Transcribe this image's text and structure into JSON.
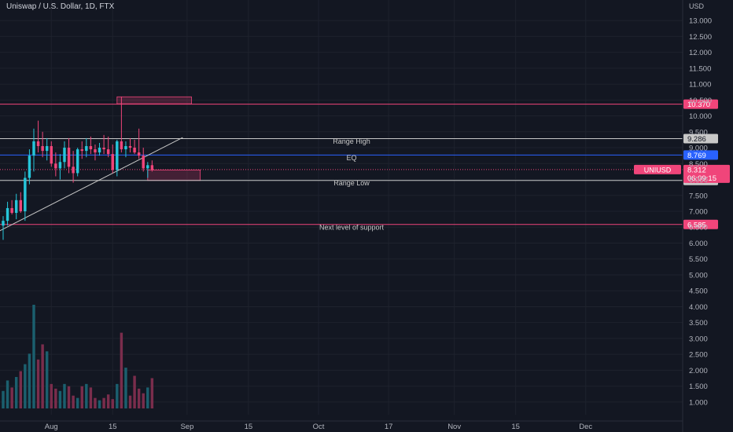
{
  "symbol_title": "Uniswap / U.S. Dollar, 1D, FTX",
  "colors": {
    "background": "#131722",
    "grid": "#1e222d",
    "axis_text": "#b2b5be",
    "up": "#26c6da",
    "down": "#f0457a",
    "vol_up": "#1b5f6e",
    "vol_down": "#7a2d4c",
    "level_pink": "#f0457a",
    "level_white": "#c8c8c8",
    "level_blue": "#2962ff",
    "zone_fill": "rgba(240,69,122,0.22)",
    "zone_stroke": "#f0457a",
    "trendline": "#c8c8c8"
  },
  "chart_data": {
    "type": "candlestick",
    "title": "Uniswap / U.S. Dollar, 1D, FTX",
    "currency_label": "USD",
    "ylim": [
      0.75,
      13.25
    ],
    "price_ticks": [
      1.0,
      1.5,
      2.0,
      2.5,
      3.0,
      3.5,
      4.0,
      4.5,
      5.0,
      5.5,
      6.0,
      6.5,
      7.0,
      7.5,
      8.0,
      8.5,
      9.0,
      9.5,
      10.0,
      10.5,
      11.0,
      11.5,
      12.0,
      12.5,
      13.0
    ],
    "price_tick_labels": [
      "1.000",
      "1.500",
      "2.000",
      "2.500",
      "3.000",
      "3.500",
      "4.000",
      "4.500",
      "5.000",
      "5.500",
      "6.000",
      "6.500",
      "7.000",
      "7.500",
      "8.000",
      "8.500",
      "9.000",
      "9.500",
      "10.000",
      "10.500",
      "11.000",
      "11.500",
      "12.000",
      "12.500",
      "13.000"
    ],
    "x_ticks": [
      {
        "date": "2021-08-01",
        "label": "Aug"
      },
      {
        "date": "2021-08-15",
        "label": "15"
      },
      {
        "date": "2021-09-01",
        "label": "Sep"
      },
      {
        "date": "2021-09-15",
        "label": "15"
      },
      {
        "date": "2021-10-01",
        "label": "Oct"
      },
      {
        "date": "2021-10-17",
        "label": "17"
      },
      {
        "date": "2021-11-01",
        "label": "Nov"
      },
      {
        "date": "2021-11-15",
        "label": "15"
      },
      {
        "date": "2021-12-01",
        "label": "Dec"
      }
    ],
    "xlim": [
      "2021-07-21",
      "2021-12-12"
    ],
    "candles": [
      {
        "date": "2021-07-21",
        "o": 6.55,
        "h": 6.85,
        "l": 6.1,
        "c": 6.7
      },
      {
        "date": "2021-07-22",
        "o": 6.7,
        "h": 7.3,
        "l": 6.55,
        "c": 7.1
      },
      {
        "date": "2021-07-23",
        "o": 7.1,
        "h": 7.35,
        "l": 6.9,
        "c": 6.95
      },
      {
        "date": "2021-07-24",
        "o": 6.95,
        "h": 7.55,
        "l": 6.75,
        "c": 7.35
      },
      {
        "date": "2021-07-25",
        "o": 7.35,
        "h": 7.6,
        "l": 6.95,
        "c": 7.0
      },
      {
        "date": "2021-07-26",
        "o": 7.0,
        "h": 8.25,
        "l": 6.7,
        "c": 8.05
      },
      {
        "date": "2021-07-27",
        "o": 8.05,
        "h": 8.95,
        "l": 7.85,
        "c": 8.75
      },
      {
        "date": "2021-07-28",
        "o": 8.75,
        "h": 9.6,
        "l": 8.25,
        "c": 9.2
      },
      {
        "date": "2021-07-29",
        "o": 9.2,
        "h": 9.85,
        "l": 8.85,
        "c": 9.05
      },
      {
        "date": "2021-07-30",
        "o": 9.05,
        "h": 9.5,
        "l": 8.7,
        "c": 8.9
      },
      {
        "date": "2021-07-31",
        "o": 8.9,
        "h": 9.3,
        "l": 8.6,
        "c": 9.05
      },
      {
        "date": "2021-08-01",
        "o": 9.05,
        "h": 9.2,
        "l": 8.4,
        "c": 8.5
      },
      {
        "date": "2021-08-02",
        "o": 8.5,
        "h": 8.85,
        "l": 8.1,
        "c": 8.35
      },
      {
        "date": "2021-08-03",
        "o": 8.35,
        "h": 8.8,
        "l": 8.0,
        "c": 8.55
      },
      {
        "date": "2021-08-04",
        "o": 8.55,
        "h": 9.2,
        "l": 8.35,
        "c": 9.0
      },
      {
        "date": "2021-08-05",
        "o": 9.0,
        "h": 9.3,
        "l": 8.2,
        "c": 8.4
      },
      {
        "date": "2021-08-06",
        "o": 8.4,
        "h": 8.9,
        "l": 7.9,
        "c": 8.2
      },
      {
        "date": "2021-08-07",
        "o": 8.2,
        "h": 9.0,
        "l": 8.1,
        "c": 8.95
      },
      {
        "date": "2021-08-08",
        "o": 8.95,
        "h": 9.2,
        "l": 8.65,
        "c": 8.9
      },
      {
        "date": "2021-08-09",
        "o": 8.9,
        "h": 9.3,
        "l": 8.7,
        "c": 9.05
      },
      {
        "date": "2021-08-10",
        "o": 9.05,
        "h": 9.35,
        "l": 8.8,
        "c": 8.95
      },
      {
        "date": "2021-08-11",
        "o": 8.95,
        "h": 9.1,
        "l": 8.6,
        "c": 8.85
      },
      {
        "date": "2021-08-12",
        "o": 8.85,
        "h": 9.15,
        "l": 8.75,
        "c": 9.0
      },
      {
        "date": "2021-08-13",
        "o": 9.0,
        "h": 9.4,
        "l": 8.8,
        "c": 8.95
      },
      {
        "date": "2021-08-14",
        "o": 8.95,
        "h": 9.35,
        "l": 8.7,
        "c": 8.8
      },
      {
        "date": "2021-08-15",
        "o": 8.8,
        "h": 9.1,
        "l": 8.2,
        "c": 8.3
      },
      {
        "date": "2021-08-16",
        "o": 8.3,
        "h": 9.25,
        "l": 8.1,
        "c": 9.2
      },
      {
        "date": "2021-08-17",
        "o": 9.2,
        "h": 10.6,
        "l": 8.85,
        "c": 8.95
      },
      {
        "date": "2021-08-18",
        "o": 8.95,
        "h": 9.2,
        "l": 8.7,
        "c": 9.05
      },
      {
        "date": "2021-08-19",
        "o": 9.05,
        "h": 9.3,
        "l": 8.85,
        "c": 9.0
      },
      {
        "date": "2021-08-20",
        "o": 9.0,
        "h": 9.25,
        "l": 8.8,
        "c": 8.85
      },
      {
        "date": "2021-08-21",
        "o": 8.85,
        "h": 9.6,
        "l": 8.65,
        "c": 8.75
      },
      {
        "date": "2021-08-22",
        "o": 8.75,
        "h": 9.0,
        "l": 8.25,
        "c": 8.35
      },
      {
        "date": "2021-08-23",
        "o": 8.35,
        "h": 8.55,
        "l": 8.05,
        "c": 8.45
      },
      {
        "date": "2021-08-24",
        "o": 8.45,
        "h": 8.6,
        "l": 8.25,
        "c": 8.31
      }
    ],
    "volume": [
      0.75,
      1.2,
      0.9,
      1.35,
      1.6,
      1.9,
      2.35,
      4.45,
      2.1,
      2.75,
      2.45,
      1.05,
      0.85,
      0.75,
      1.05,
      0.95,
      0.55,
      0.45,
      0.95,
      1.05,
      0.9,
      0.45,
      0.35,
      0.45,
      0.6,
      0.4,
      1.05,
      3.25,
      1.75,
      0.55,
      1.4,
      0.85,
      0.65,
      0.9,
      1.3
    ],
    "levels": [
      {
        "price": 10.37,
        "label": "10.370",
        "style": "pink",
        "text": ""
      },
      {
        "price": 9.286,
        "label": "9.286",
        "style": "white",
        "text": "Range High"
      },
      {
        "price": 8.769,
        "label": "8.769",
        "style": "blue",
        "text": "EQ"
      },
      {
        "price": 7.971,
        "label": "7.971",
        "style": "white",
        "text": "Range Low"
      },
      {
        "price": 6.585,
        "label": "6.585",
        "style": "pink",
        "text": "Next level of support"
      }
    ],
    "zones": [
      {
        "from_date": "2021-08-16",
        "to_date": "2021-09-02",
        "top": 10.6,
        "bottom": 10.38
      },
      {
        "from_date": "2021-08-23",
        "to_date": "2021-09-04",
        "top": 8.3,
        "bottom": 7.97
      }
    ],
    "trendline": {
      "from": {
        "date": "2021-07-19",
        "price": 6.3
      },
      "to": {
        "date": "2021-08-31",
        "price": 9.32
      }
    },
    "current_price": {
      "symbol": "UNIUSD",
      "price": 8.312,
      "label": "8.312",
      "countdown": "06:09:15"
    }
  }
}
